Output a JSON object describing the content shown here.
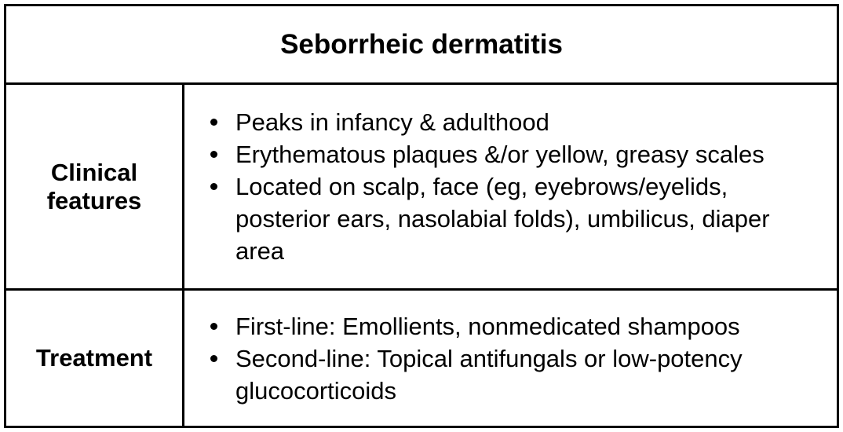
{
  "title": "Seborrheic dermatitis",
  "rows": [
    {
      "label": "Clinical\nfeatures",
      "items": [
        "Peaks in infancy & adulthood",
        "Erythematous plaques &/or yellow, greasy scales",
        "Located on scalp, face (eg, eyebrows/eyelids, posterior ears, nasolabial folds), umbilicus, diaper area"
      ]
    },
    {
      "label": "Treatment",
      "items": [
        "First-line: Emollients, nonmedicated shampoos",
        "Second-line: Topical antifungals or low-potency glucocorticoids"
      ]
    }
  ]
}
